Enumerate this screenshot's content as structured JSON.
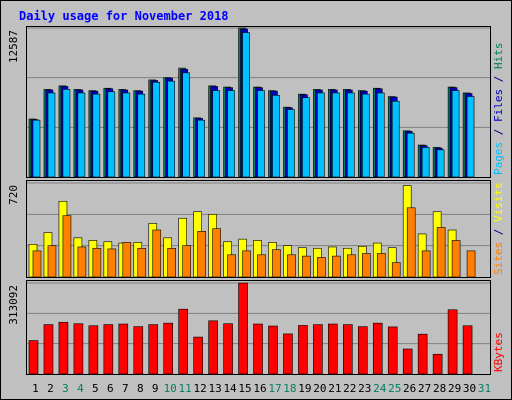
{
  "chart_data": {
    "type": "bar",
    "title": "Daily usage for November 2018",
    "categories": [
      "1",
      "2",
      "3",
      "4",
      "5",
      "6",
      "7",
      "8",
      "9",
      "10",
      "11",
      "12",
      "13",
      "14",
      "15",
      "16",
      "17",
      "18",
      "19",
      "20",
      "21",
      "22",
      "23",
      "24",
      "25",
      "26",
      "27",
      "28",
      "29",
      "30",
      "31"
    ],
    "weekend_days": [
      "3",
      "4",
      "10",
      "11",
      "17",
      "18",
      "24",
      "25",
      "31"
    ],
    "panels": [
      {
        "id": "hits-files-pages",
        "max_label": "12587",
        "ymax": 12587,
        "right_labels": [
          {
            "text": "Pages",
            "color": "#00c0ff"
          },
          {
            "text": " / ",
            "color": "#000080"
          },
          {
            "text": "Files",
            "color": "#0000c0"
          },
          {
            "text": " / ",
            "color": "#000080"
          },
          {
            "text": "Hits",
            "color": "#008060"
          }
        ],
        "series": [
          {
            "name": "Hits",
            "color": "#008060",
            "values": [
              4900,
              7400,
              7700,
              7400,
              7300,
              7500,
              7400,
              7300,
              8200,
              8400,
              9200,
              5000,
              7700,
              7600,
              12587,
              7600,
              7300,
              5900,
              7000,
              7400,
              7400,
              7400,
              7300,
              7500,
              6800,
              3900,
              2700,
              2500,
              7600,
              7100,
              0
            ]
          },
          {
            "name": "Files",
            "color": "#0000c0",
            "values": [
              4850,
              7350,
              7650,
              7350,
              7250,
              7450,
              7350,
              7250,
              8150,
              8350,
              9100,
              4950,
              7650,
              7550,
              12500,
              7550,
              7250,
              5850,
              6950,
              7350,
              7350,
              7350,
              7250,
              7450,
              6750,
              3850,
              2650,
              2450,
              7550,
              7050,
              0
            ]
          },
          {
            "name": "Pages",
            "color": "#00c0ff",
            "values": [
              4800,
              7100,
              7400,
              7100,
              7000,
              7200,
              7100,
              7000,
              8000,
              8100,
              8800,
              4800,
              7300,
              7300,
              12200,
              7300,
              6900,
              5700,
              6700,
              7100,
              7100,
              7100,
              7000,
              7100,
              6400,
              3700,
              2500,
              2300,
              7300,
              6800,
              0
            ]
          }
        ]
      },
      {
        "id": "visits-sites",
        "max_label": "720",
        "ymax": 720,
        "right_labels": [
          {
            "text": "Sites",
            "color": "#ff8000"
          },
          {
            "text": " / ",
            "color": "#000080"
          },
          {
            "text": "Visits",
            "color": "#ffff00"
          }
        ],
        "series": [
          {
            "name": "Visits",
            "color": "#ffff00",
            "values": [
              250,
              340,
              580,
              300,
              280,
              270,
              260,
              265,
              410,
              300,
              450,
              500,
              480,
              270,
              290,
              280,
              265,
              240,
              225,
              220,
              230,
              220,
              235,
              260,
              225,
              700,
              330,
              500,
              360,
              0,
              0
            ]
          },
          {
            "name": "Sites",
            "color": "#ff8000",
            "values": [
              200,
              240,
              470,
              230,
              220,
              215,
              265,
              220,
              360,
              220,
              240,
              350,
              370,
              170,
              200,
              170,
              210,
              170,
              160,
              150,
              160,
              170,
              180,
              180,
              110,
              530,
              200,
              380,
              280,
              200,
              0
            ]
          }
        ]
      },
      {
        "id": "kbytes",
        "max_label": "313092",
        "ymax": 313092,
        "right_labels": [
          {
            "text": "KBytes",
            "color": "#ff0000"
          }
        ],
        "series": [
          {
            "name": "KBytes",
            "color": "#ff0000",
            "values": [
              115000,
              170000,
              178000,
              173000,
              166000,
              170000,
              172000,
              163000,
              170000,
              175000,
              223000,
              127000,
              183000,
              173000,
              313092,
              172000,
              165000,
              138000,
              167000,
              170000,
              172000,
              170000,
              163000,
              175000,
              162000,
              86000,
              137000,
              68000,
              221000,
              166000,
              0
            ]
          }
        ]
      }
    ]
  }
}
